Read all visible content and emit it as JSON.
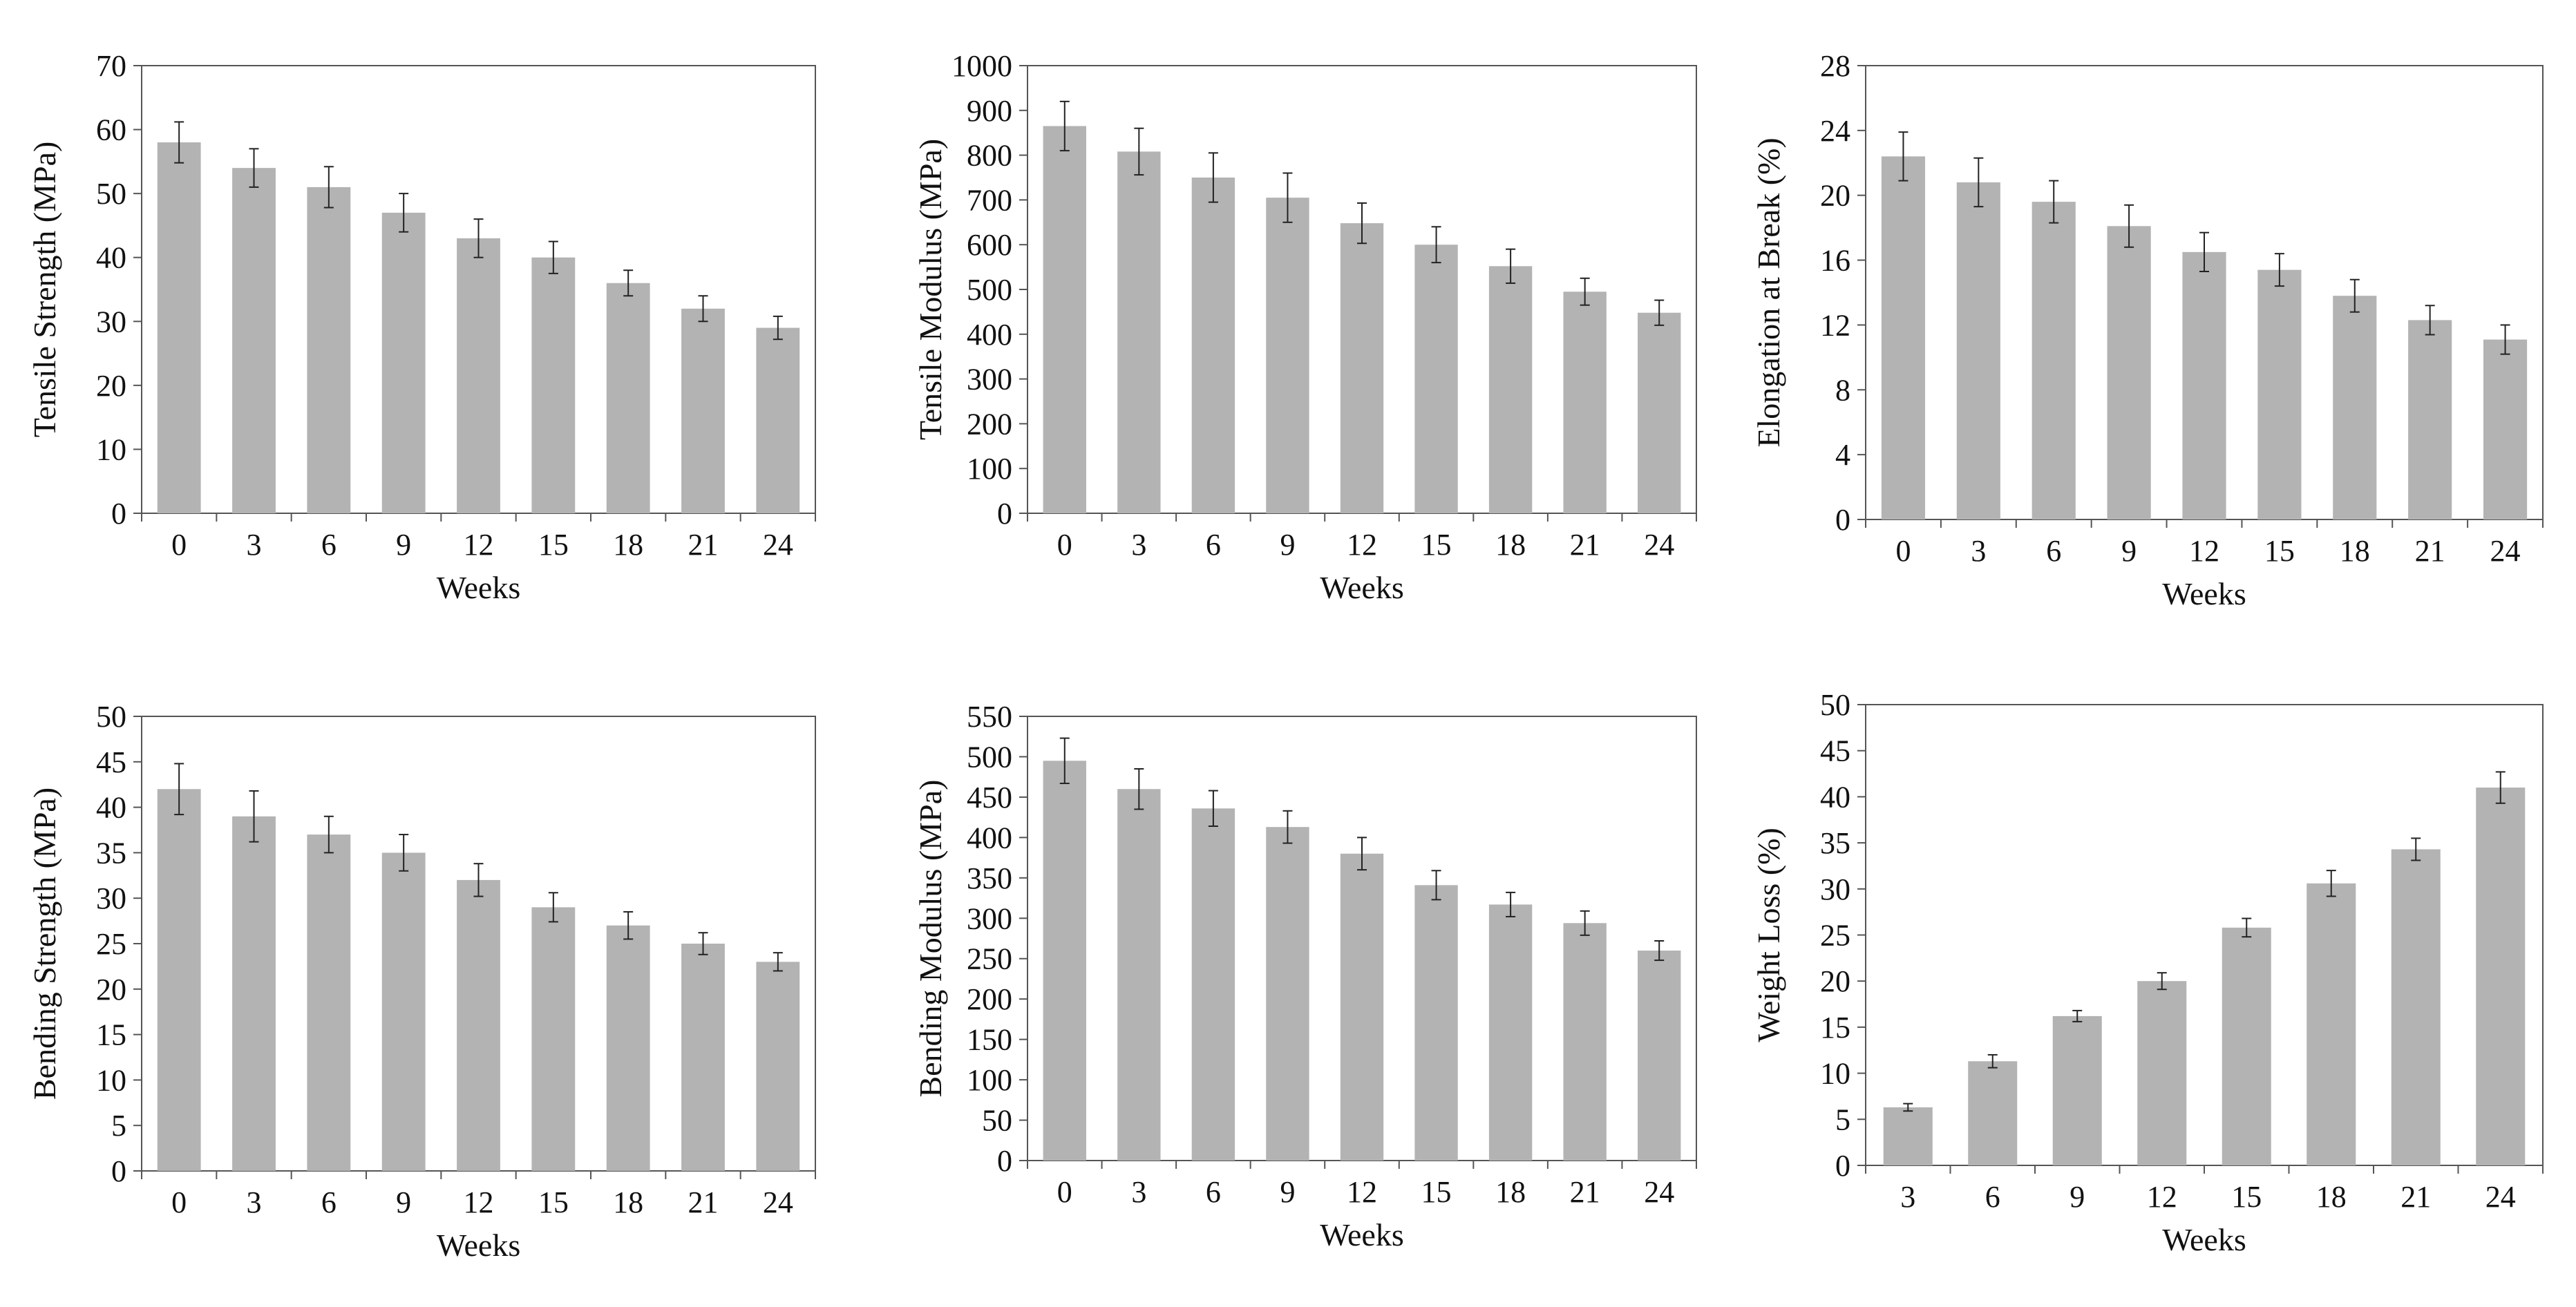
{
  "colors": {
    "bar": "#b3b3b3",
    "axis": "#555555",
    "text": "#111111",
    "background": "#ffffff"
  },
  "chart_data": [
    {
      "type": "bar",
      "categories": [
        "0",
        "3",
        "6",
        "9",
        "12",
        "15",
        "18",
        "21",
        "24"
      ],
      "values": [
        58,
        54,
        51,
        47,
        43,
        40,
        36,
        32,
        29
      ],
      "errors": [
        3.2,
        3.0,
        3.2,
        3.0,
        3.0,
        2.5,
        2.0,
        2.0,
        1.8
      ],
      "ylim": [
        0,
        70
      ],
      "yticks": [
        "0",
        "10",
        "20",
        "30",
        "40",
        "50",
        "60",
        "70"
      ],
      "xlabel": "Weeks",
      "ylabel": "Tensile Strength (MPa)",
      "grid": false
    },
    {
      "type": "bar",
      "categories": [
        "0",
        "3",
        "6",
        "9",
        "12",
        "15",
        "18",
        "21",
        "24"
      ],
      "values": [
        865,
        808,
        750,
        705,
        648,
        600,
        552,
        495,
        448
      ],
      "errors": [
        55,
        52,
        55,
        55,
        45,
        40,
        38,
        30,
        28
      ],
      "ylim": [
        0,
        1000
      ],
      "yticks": [
        "0",
        "100",
        "200",
        "300",
        "400",
        "500",
        "600",
        "700",
        "800",
        "900",
        "1000"
      ],
      "xlabel": "Weeks",
      "ylabel": "Tensile Modulus (MPa)",
      "grid": false
    },
    {
      "type": "bar",
      "categories": [
        "0",
        "3",
        "6",
        "9",
        "12",
        "15",
        "18",
        "21",
        "24"
      ],
      "values": [
        22.4,
        20.8,
        19.6,
        18.1,
        16.5,
        15.4,
        13.8,
        12.3,
        11.1
      ],
      "errors": [
        1.5,
        1.5,
        1.3,
        1.3,
        1.2,
        1.0,
        1.0,
        0.9,
        0.9
      ],
      "ylim": [
        0,
        28
      ],
      "yticks": [
        "0",
        "4",
        "8",
        "12",
        "16",
        "20",
        "24",
        "28"
      ],
      "xlabel": "Weeks",
      "ylabel": "Elongation at Break (%)",
      "grid": false
    },
    {
      "type": "bar",
      "categories": [
        "0",
        "3",
        "6",
        "9",
        "12",
        "15",
        "18",
        "21",
        "24"
      ],
      "values": [
        42,
        39,
        37,
        35,
        32,
        29,
        27,
        25,
        23
      ],
      "errors": [
        2.8,
        2.8,
        2.0,
        2.0,
        1.8,
        1.6,
        1.5,
        1.2,
        1.0
      ],
      "ylim": [
        0,
        50
      ],
      "yticks": [
        "0",
        "5",
        "10",
        "15",
        "20",
        "25",
        "30",
        "35",
        "40",
        "45",
        "50"
      ],
      "xlabel": "Weeks",
      "ylabel": "Bending Strength (MPa)",
      "grid": false
    },
    {
      "type": "bar",
      "categories": [
        "0",
        "3",
        "6",
        "9",
        "12",
        "15",
        "18",
        "21",
        "24"
      ],
      "values": [
        495,
        460,
        436,
        413,
        380,
        341,
        317,
        294,
        260
      ],
      "errors": [
        28,
        25,
        22,
        20,
        20,
        18,
        15,
        15,
        12
      ],
      "ylim": [
        0,
        550
      ],
      "yticks": [
        "0",
        "50",
        "100",
        "150",
        "200",
        "250",
        "300",
        "350",
        "400",
        "450",
        "500",
        "550"
      ],
      "xlabel": "Weeks",
      "ylabel": "Bending Modulus (MPa)",
      "grid": false
    },
    {
      "type": "bar",
      "categories": [
        "3",
        "6",
        "9",
        "12",
        "15",
        "18",
        "21",
        "24"
      ],
      "values": [
        6.3,
        11.3,
        16.2,
        20.0,
        25.8,
        30.6,
        34.3,
        41.0
      ],
      "errors": [
        0.4,
        0.7,
        0.6,
        0.9,
        1.0,
        1.4,
        1.2,
        1.7
      ],
      "ylim": [
        0,
        50
      ],
      "yticks": [
        "0",
        "5",
        "10",
        "15",
        "20",
        "25",
        "30",
        "35",
        "40",
        "45",
        "50"
      ],
      "xlabel": "Weeks",
      "ylabel": "Weight Loss (%)",
      "grid": false
    }
  ]
}
